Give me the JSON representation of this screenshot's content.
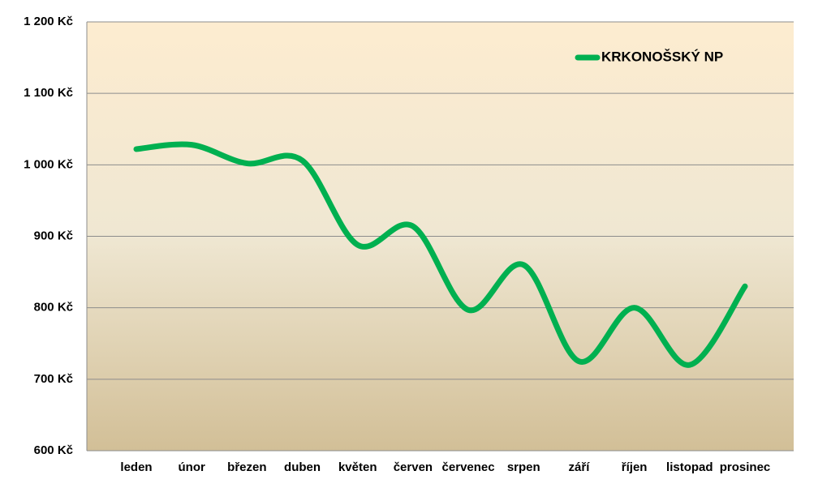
{
  "chart_data": {
    "type": "line",
    "categories": [
      "leden",
      "únor",
      "březen",
      "duben",
      "květen",
      "červen",
      "červenec",
      "srpen",
      "září",
      "říjen",
      "listopad",
      "prosinec"
    ],
    "series": [
      {
        "name": "KRKONOŠSKÝ NP",
        "color": "#00b050",
        "values": [
          1022,
          1028,
          1002,
          1006,
          888,
          914,
          797,
          860,
          725,
          800,
          720,
          830
        ]
      }
    ],
    "ylim": [
      600,
      1200
    ],
    "yticks": [
      {
        "value": 600,
        "label": "600 Kč"
      },
      {
        "value": 700,
        "label": "700 Kč"
      },
      {
        "value": 800,
        "label": "800 Kč"
      },
      {
        "value": 900,
        "label": "900 Kč"
      },
      {
        "value": 1000,
        "label": "1 000 Kč"
      },
      {
        "value": 1100,
        "label": "1 100 Kč"
      },
      {
        "value": 1200,
        "label": "1 200 Kč"
      }
    ],
    "grid": true,
    "smooth": true,
    "legend": "top-right"
  }
}
